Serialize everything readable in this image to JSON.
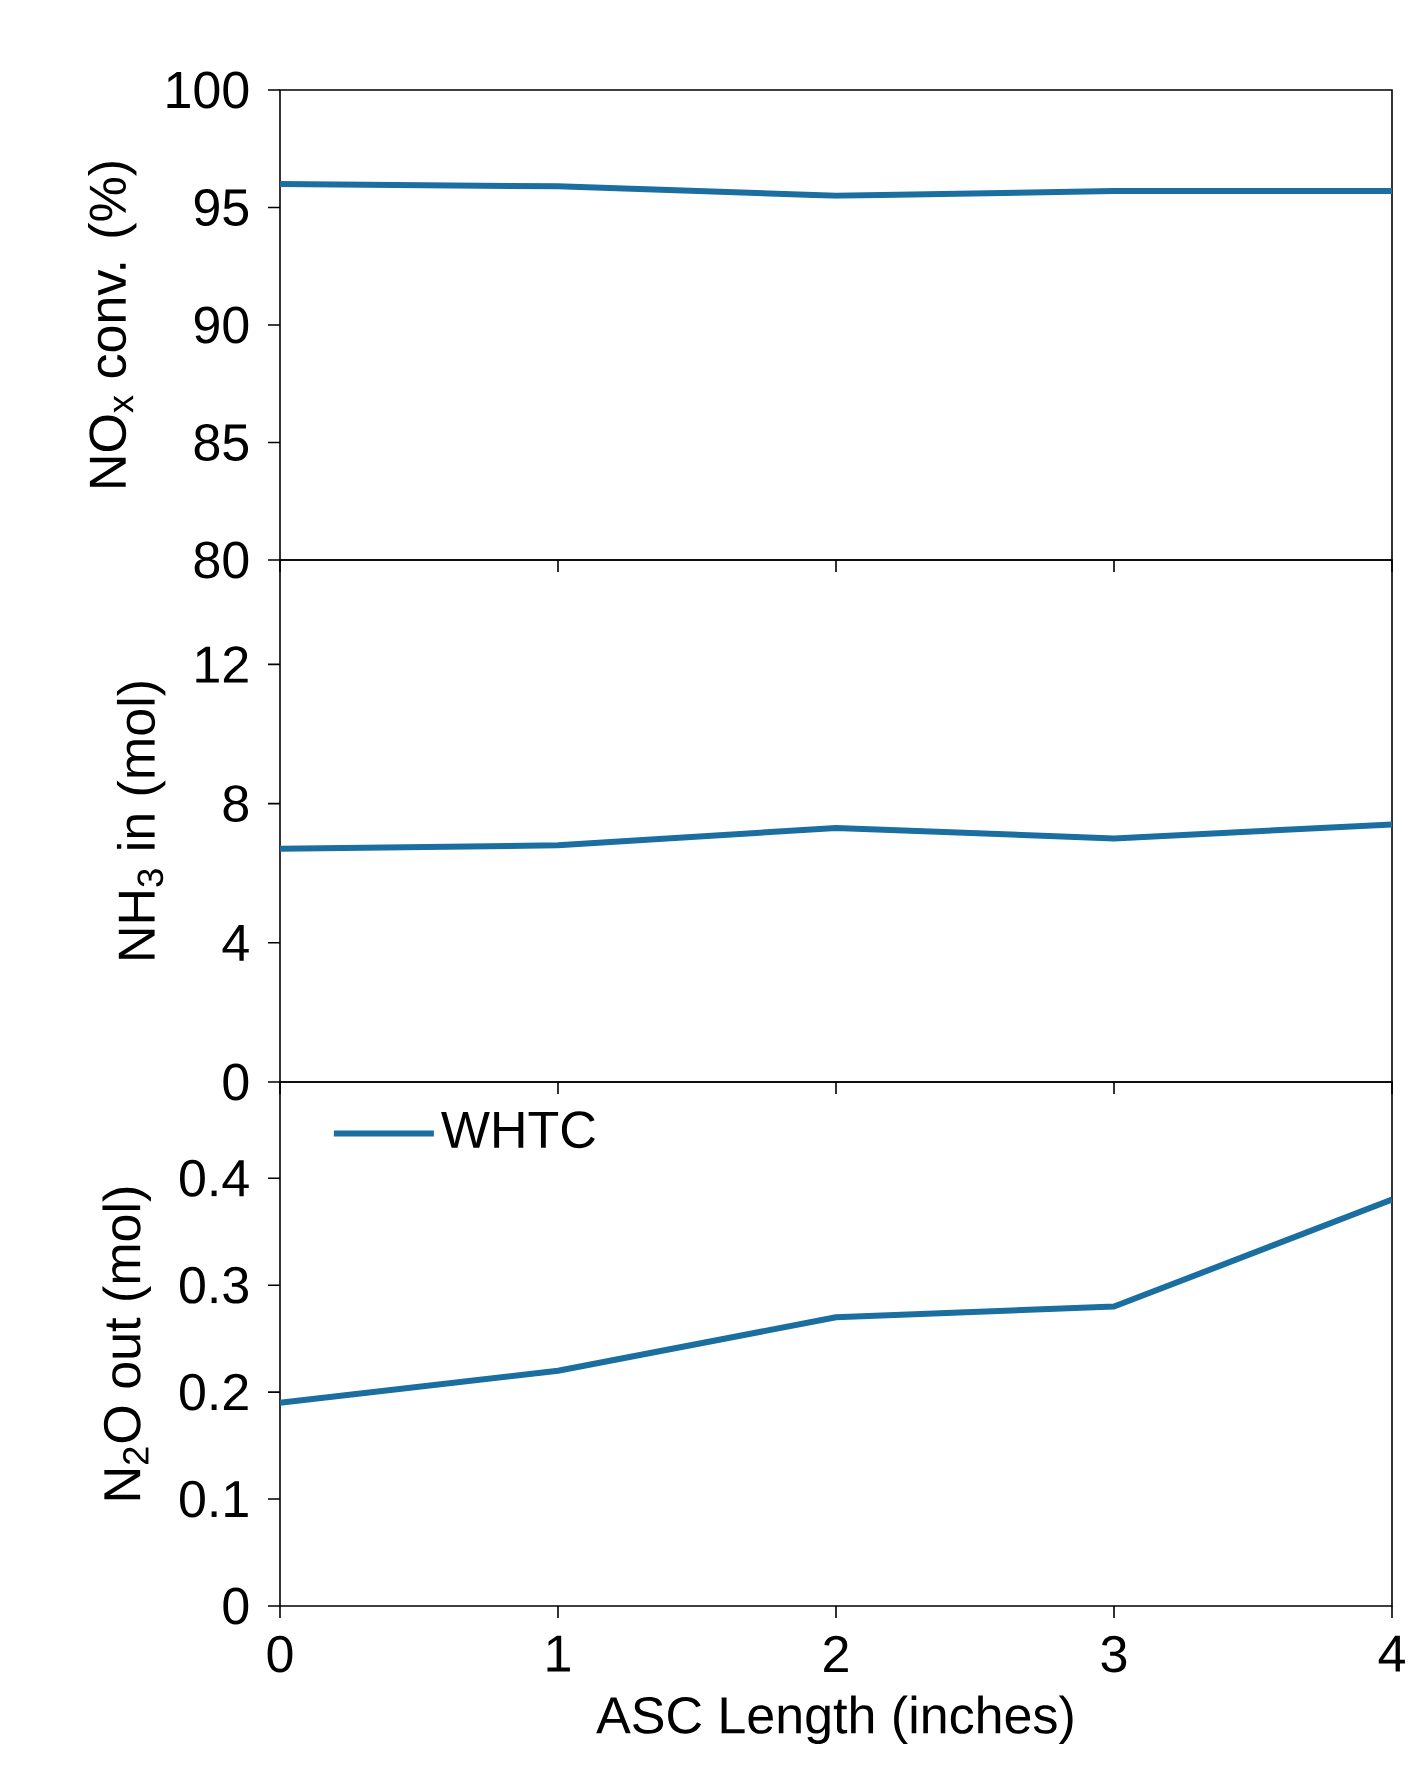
{
  "chart_data": [
    {
      "type": "line",
      "ylabel": "NO$_{x}$ conv. (%)",
      "x": [
        0,
        1,
        2,
        3,
        4
      ],
      "xlim": [
        0,
        4
      ],
      "xticks": [
        0,
        1,
        2,
        3,
        4
      ],
      "ylim": [
        80,
        100
      ],
      "yticks": [
        80,
        85,
        90,
        95,
        100
      ],
      "tick_labels": "y",
      "series": [
        {
          "color": "#1a6ea0",
          "values": [
            96.0,
            95.9,
            95.5,
            95.7,
            95.7
          ]
        }
      ]
    },
    {
      "type": "line",
      "ylabel": "NH$_{3}$ in (mol)",
      "x": [
        0,
        1,
        2,
        3,
        4
      ],
      "xlim": [
        0,
        4
      ],
      "xticks": [
        0,
        1,
        2,
        3,
        4
      ],
      "ylim": [
        0,
        15
      ],
      "yticks": [
        0,
        4,
        8,
        12
      ],
      "tick_labels": "y",
      "series": [
        {
          "color": "#1a6ea0",
          "values": [
            6.7,
            6.8,
            7.3,
            7.0,
            7.4
          ]
        }
      ]
    },
    {
      "type": "line",
      "ylabel": "N$_{2}$O out (mol)",
      "xlabel": "ASC Length (inches)",
      "x": [
        0,
        1,
        2,
        3,
        4
      ],
      "xlim": [
        0,
        4
      ],
      "xticks": [
        0,
        1,
        2,
        3,
        4
      ],
      "ylim": [
        0,
        0.49
      ],
      "yticks": [
        0,
        0.1,
        0.2,
        0.3,
        0.4
      ],
      "legend": "top left",
      "series": [
        {
          "name": "WHTC",
          "color": "#1a6ea0",
          "values": [
            0.19,
            0.22,
            0.27,
            0.28,
            0.38
          ]
        }
      ]
    }
  ]
}
